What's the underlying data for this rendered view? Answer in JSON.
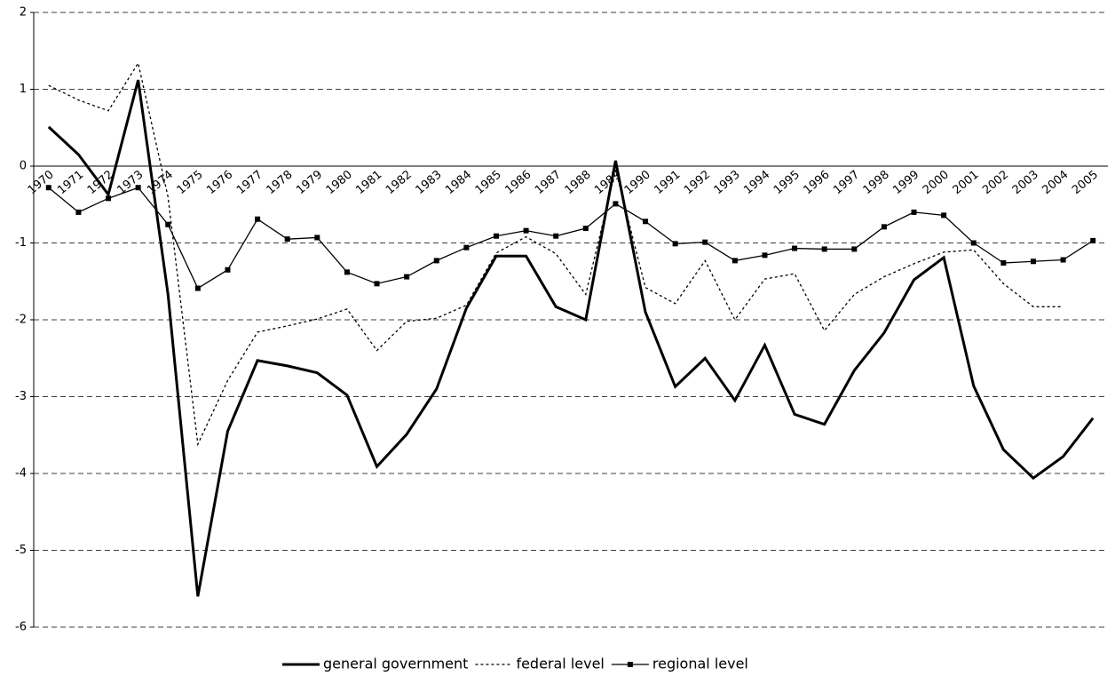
{
  "chart_data": {
    "type": "line",
    "categories": [
      "1970",
      "1971",
      "1972",
      "1973",
      "1974",
      "1975",
      "1976",
      "1977",
      "1978",
      "1979",
      "1980",
      "1981",
      "1982",
      "1983",
      "1984",
      "1985",
      "1986",
      "1987",
      "1988",
      "1989",
      "1990",
      "1991",
      "1992",
      "1993",
      "1994",
      "1995",
      "1996",
      "1997",
      "1998",
      "1999",
      "2000",
      "2001",
      "2002",
      "2003",
      "2004",
      "2005"
    ],
    "series": [
      {
        "name": "general government",
        "color": "#000000",
        "line_width": 3,
        "line_style": "solid",
        "marker": "none",
        "values": [
          0.51,
          0.15,
          -0.37,
          1.12,
          -1.67,
          -5.6,
          -3.45,
          -2.53,
          -2.6,
          -2.69,
          -2.98,
          -3.91,
          -3.49,
          -2.9,
          -1.85,
          -1.17,
          -1.17,
          -1.83,
          -2.0,
          0.07,
          -1.9,
          -2.87,
          -2.5,
          -3.05,
          -2.33,
          -3.23,
          -3.36,
          -2.66,
          -2.17,
          -1.48,
          -1.19,
          -2.86,
          -3.69,
          -4.06,
          -3.78,
          -3.28
        ]
      },
      {
        "name": "federal level",
        "color": "#000000",
        "line_width": 1.3,
        "line_style": "dotted",
        "marker": "none",
        "values": [
          1.05,
          0.86,
          0.72,
          1.34,
          -0.4,
          -3.62,
          -2.79,
          -2.16,
          -2.08,
          -1.99,
          -1.86,
          -2.4,
          -2.02,
          -1.98,
          -1.81,
          -1.13,
          -0.92,
          -1.14,
          -1.67,
          -0.05,
          -1.58,
          -1.79,
          -1.23,
          -2.0,
          -1.47,
          -1.4,
          -2.14,
          -1.67,
          -1.44,
          -1.27,
          -1.12,
          -1.09,
          -1.53,
          -1.83,
          -1.83,
          null
        ]
      },
      {
        "name": "regional level",
        "color": "#000000",
        "line_width": 1.3,
        "line_style": "solid",
        "marker": "square",
        "values": [
          -0.28,
          -0.6,
          -0.42,
          -0.28,
          -0.76,
          -1.59,
          -1.35,
          -0.69,
          -0.95,
          -0.93,
          -1.38,
          -1.53,
          -1.44,
          -1.23,
          -1.06,
          -0.91,
          -0.84,
          -0.91,
          -0.81,
          -0.49,
          -0.72,
          -1.01,
          -0.99,
          -1.23,
          -1.16,
          -1.07,
          -1.08,
          -1.08,
          -0.79,
          -0.6,
          -0.64,
          -1.0,
          -1.26,
          -1.24,
          -1.22,
          -0.97
        ]
      }
    ],
    "ylim": [
      -6,
      2
    ],
    "yticks": [
      -6,
      -5,
      -4,
      -3,
      -2,
      -1,
      0,
      1,
      2
    ],
    "grid": true,
    "legend": "bottom"
  }
}
